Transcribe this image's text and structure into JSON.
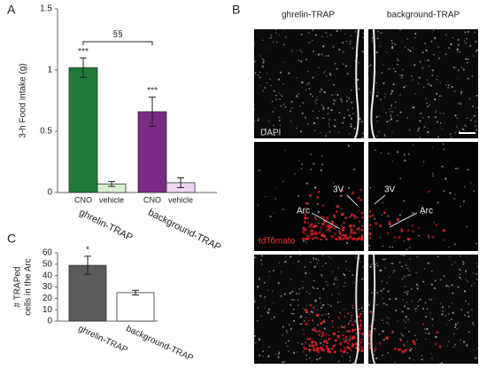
{
  "panels": {
    "a": "A",
    "b": "B",
    "c": "C"
  },
  "chart_data": [
    {
      "type": "bar",
      "ylabel": "3-h Food intake (g)",
      "categories": [
        "CNO",
        "vehicle",
        "CNO",
        "vehicle"
      ],
      "groups": [
        "ghrelin-TRAP",
        "background-TRAP"
      ],
      "values": [
        1.02,
        0.07,
        0.66,
        0.08
      ],
      "errors": [
        0.08,
        0.02,
        0.12,
        0.04
      ],
      "colors": [
        "#1f7a38",
        "#d8efd2",
        "#7a2a82",
        "#ecd8ef"
      ],
      "bar_labels": [
        "***",
        null,
        "***",
        null
      ],
      "bracket_label": "§§",
      "ylim": [
        0,
        1.5
      ],
      "yticks": [
        0,
        0.5,
        1,
        1.5
      ]
    },
    {
      "type": "bar",
      "ylabel_lines": [
        "# TRAPed",
        "cells in the Arc"
      ],
      "categories": [
        "ghrelin-TRAP",
        "background-TRAP"
      ],
      "values": [
        49,
        25
      ],
      "errors": [
        8,
        2
      ],
      "colors": [
        "#5b5b5b",
        "#ffffff"
      ],
      "bar_labels": [
        "*",
        null
      ],
      "ylim": [
        0,
        60
      ],
      "yticks": [
        0,
        10,
        20,
        30,
        40,
        50,
        60
      ]
    }
  ],
  "image_panel": {
    "columns": [
      "ghrelin-TRAP",
      "background-TRAP"
    ],
    "stain_1": "DAPI",
    "stain_2": "tdTomato",
    "ventricle": "3V",
    "nucleus": "Arc"
  }
}
